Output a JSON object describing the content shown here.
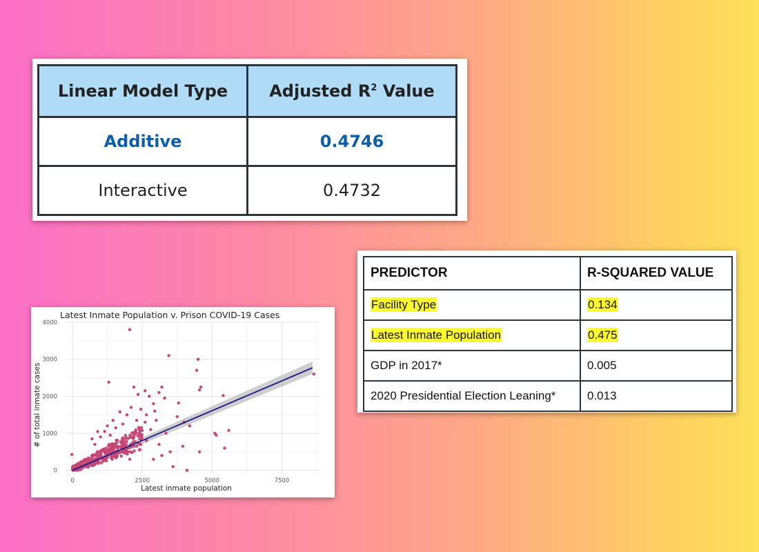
{
  "model_table": {
    "headers": [
      "Linear Model Type",
      "Adjusted R",
      "2",
      " Value"
    ],
    "rows": [
      {
        "type": "Additive",
        "value": "0.4746",
        "highlight": true
      },
      {
        "type": "Interactive",
        "value": "0.4732",
        "highlight": false
      }
    ],
    "colors": {
      "header_bg": "#b0dcf7",
      "highlight_text": "#0d5da8"
    }
  },
  "predictor_table": {
    "headers": [
      "PREDICTOR",
      "R-SQUARED VALUE"
    ],
    "rows": [
      {
        "predictor": "Facility Type",
        "value": "0.134",
        "highlighted": true
      },
      {
        "predictor": "Latest Inmate Population",
        "value": "0.475",
        "highlighted": true
      },
      {
        "predictor": "GDP in 2017*",
        "value": "0.005",
        "highlighted": false
      },
      {
        "predictor": "2020 Presidential Election Leaning*",
        "value": "0.013",
        "highlighted": false
      }
    ],
    "colors": {
      "highlight": "#fdfb2b"
    }
  },
  "chart_data": {
    "type": "scatter",
    "title": "Latest Inmate Population v. Prison COVID-19 Cases",
    "xlabel": "Latest inmate population",
    "ylabel": "# of total inmate cases",
    "xlim": [
      -250,
      8900
    ],
    "ylim": [
      -100,
      4000
    ],
    "xticks": [
      0,
      2500,
      5000,
      7500
    ],
    "yticks": [
      0,
      1000,
      2000,
      3000,
      4000
    ],
    "grid": true,
    "point_color": "#c64775",
    "line_color": "#1a1a8c",
    "regression": {
      "x": [
        0,
        8600
      ],
      "y": [
        0,
        2770
      ]
    },
    "points_outliers": [
      [
        2050,
        3800
      ],
      [
        3450,
        3100
      ],
      [
        4500,
        3000
      ],
      [
        4450,
        2700
      ],
      [
        4600,
        2250
      ],
      [
        4550,
        2170
      ],
      [
        5400,
        2020
      ],
      [
        8650,
        2600
      ],
      [
        1300,
        2380
      ],
      [
        2200,
        2250
      ],
      [
        2350,
        2050
      ],
      [
        2600,
        2150
      ],
      [
        2750,
        2000
      ],
      [
        3200,
        2250
      ],
      [
        3100,
        2100
      ],
      [
        3300,
        1950
      ],
      [
        3800,
        1820
      ],
      [
        4200,
        1200
      ],
      [
        4000,
        1300
      ],
      [
        5100,
        1000
      ],
      [
        5150,
        950
      ],
      [
        5600,
        1080
      ],
      [
        5450,
        600
      ],
      [
        4550,
        500
      ],
      [
        3600,
        100
      ],
      [
        3950,
        650
      ],
      [
        3500,
        500
      ],
      [
        3350,
        1000
      ],
      [
        3100,
        700
      ],
      [
        2900,
        300
      ],
      [
        2800,
        1100
      ],
      [
        2650,
        1500
      ],
      [
        2450,
        1650
      ],
      [
        2300,
        1350
      ],
      [
        2100,
        1700
      ],
      [
        1950,
        1500
      ],
      [
        1800,
        1250
      ],
      [
        1700,
        1580
      ],
      [
        1550,
        1150
      ],
      [
        1450,
        1350
      ],
      [
        1350,
        950
      ],
      [
        1250,
        1200
      ],
      [
        1150,
        1050
      ],
      [
        1000,
        900
      ],
      [
        900,
        1050
      ],
      [
        800,
        700
      ],
      [
        700,
        850
      ],
      [
        -20,
        430
      ],
      [
        4100,
        0
      ],
      [
        2950,
        1600
      ],
      [
        2600,
        1300
      ],
      [
        2200,
        900
      ],
      [
        2400,
        550
      ],
      [
        3000,
        1350
      ],
      [
        1800,
        700
      ],
      [
        1600,
        400
      ],
      [
        2050,
        300
      ],
      [
        2650,
        800
      ],
      [
        3200,
        400
      ],
      [
        3750,
        1450
      ],
      [
        2900,
        1800
      ]
    ],
    "cluster": {
      "count": 360,
      "x_max": 2500,
      "slope": 0.32,
      "spread": 520
    }
  }
}
